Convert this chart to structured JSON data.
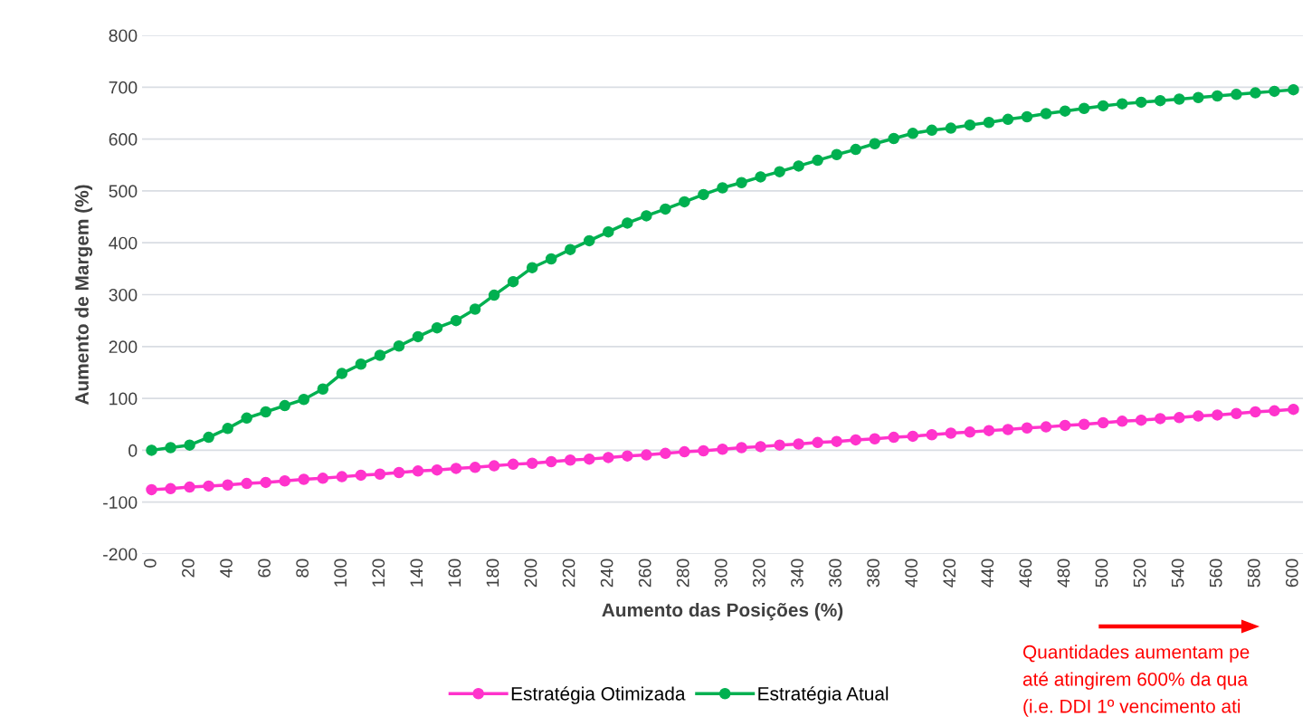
{
  "chart_data": {
    "type": "line",
    "xlabel": "Aumento das Posições (%)",
    "ylabel": "Aumento de Margem (%)",
    "x": [
      0,
      10,
      20,
      30,
      40,
      50,
      60,
      70,
      80,
      90,
      100,
      110,
      120,
      130,
      140,
      150,
      160,
      170,
      180,
      190,
      200,
      210,
      220,
      230,
      240,
      250,
      260,
      270,
      280,
      290,
      300,
      310,
      320,
      330,
      340,
      350,
      360,
      370,
      380,
      390,
      400,
      410,
      420,
      430,
      440,
      450,
      460,
      470,
      480,
      490,
      500,
      510,
      520,
      530,
      540,
      550,
      560,
      570,
      580,
      590,
      600
    ],
    "series": [
      {
        "name": "Estratégia Otimizada",
        "color": "#ff33cc",
        "values": [
          -76,
          -74,
          -71,
          -69,
          -67,
          -64,
          -62,
          -59,
          -56,
          -54,
          -51,
          -48,
          -46,
          -43,
          -40,
          -38,
          -35,
          -33,
          -30,
          -27,
          -25,
          -22,
          -19,
          -17,
          -14,
          -11,
          -9,
          -6,
          -3,
          -1,
          2,
          5,
          7,
          10,
          12,
          15,
          17,
          20,
          22,
          25,
          27,
          30,
          33,
          35,
          38,
          40,
          43,
          45,
          48,
          50,
          53,
          56,
          58,
          61,
          63,
          66,
          68,
          71,
          74,
          76,
          79
        ]
      },
      {
        "name": "Estratégia Atual",
        "color": "#00b050",
        "values": [
          0,
          5,
          10,
          25,
          42,
          62,
          74,
          86,
          98,
          118,
          148,
          166,
          183,
          201,
          219,
          236,
          250,
          272,
          299,
          325,
          352,
          369,
          387,
          404,
          421,
          438,
          452,
          465,
          479,
          493,
          506,
          516,
          527,
          537,
          548,
          559,
          570,
          580,
          591,
          601,
          611,
          617,
          621,
          627,
          632,
          638,
          643,
          649,
          654,
          659,
          664,
          668,
          671,
          674,
          677,
          680,
          683,
          686,
          689,
          692,
          695
        ]
      }
    ],
    "xlim": [
      -5,
      605
    ],
    "xticks": [
      0,
      20,
      40,
      60,
      80,
      100,
      120,
      140,
      160,
      180,
      200,
      220,
      240,
      260,
      280,
      300,
      320,
      340,
      360,
      380,
      400,
      420,
      440,
      460,
      480,
      500,
      520,
      540,
      560,
      580,
      600
    ],
    "ylim": [
      -200,
      800
    ],
    "yticks": [
      -200,
      -100,
      0,
      100,
      200,
      300,
      400,
      500,
      600,
      700,
      800
    ],
    "grid": "y",
    "legend": "bottom",
    "marker": "circle",
    "line_style": "solid",
    "annotations": [
      "Quantidades aumentam pe",
      "até atingirem 600% da qua",
      "(i.e. DDI 1º vencimento ati"
    ]
  }
}
